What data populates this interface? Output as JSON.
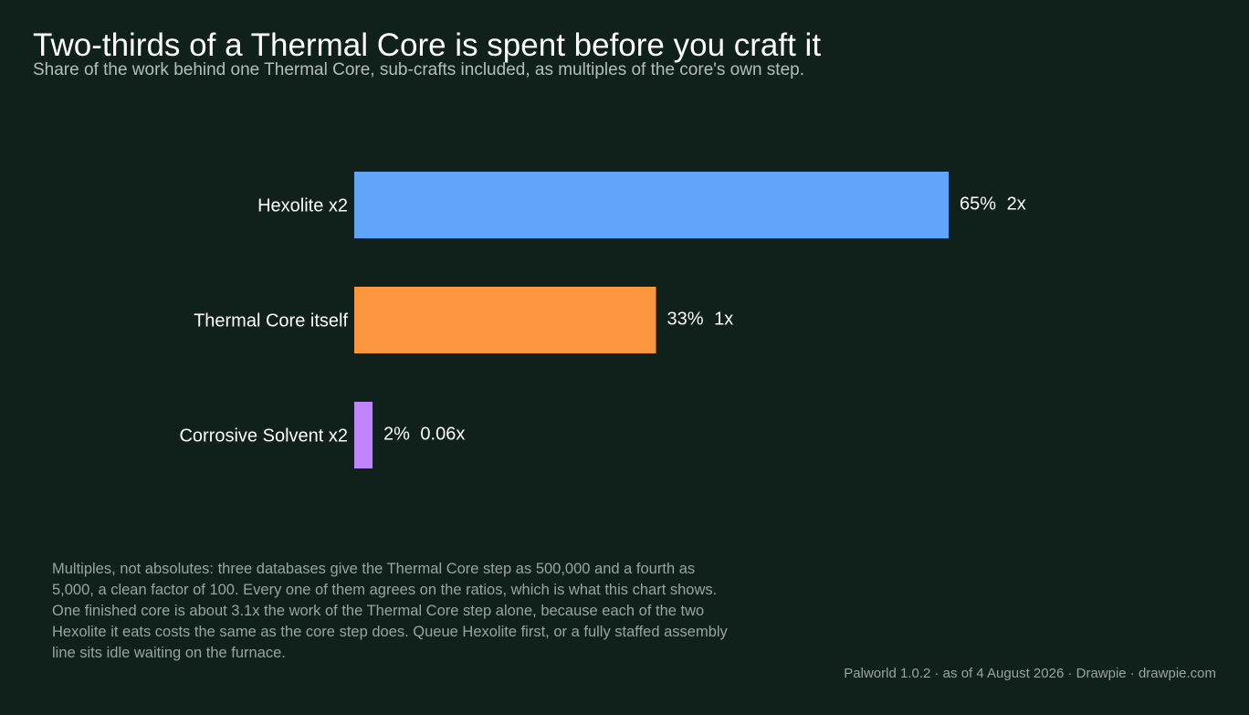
{
  "header": {
    "title": "Two-thirds of a Thermal Core is spent before you craft it",
    "subtitle": "Share of the work behind one Thermal Core, sub-crafts included, as multiples of the core's own step."
  },
  "chart_data": {
    "type": "bar",
    "orientation": "horizontal",
    "categories": [
      "Hexolite x2",
      "Thermal Core itself",
      "Corrosive Solvent x2"
    ],
    "values": [
      65,
      33,
      2
    ],
    "value_unit": "%",
    "value_labels": [
      "65%",
      "33%",
      "2%"
    ],
    "multiple_labels": [
      "2x",
      "1x",
      "0.06x"
    ],
    "colors": [
      "#60a5fa",
      "#fb963f",
      "#c084fc"
    ],
    "xlim": [
      0,
      65
    ],
    "grid": false,
    "legend": "none"
  },
  "notes": {
    "paragraph_1": "Multiples, not absolutes: three databases give the Thermal Core step as 500,000 and a fourth as 5,000, a clean factor of 100. Every one of them agrees on the ratios, which is what this chart shows.",
    "paragraph_2": "One finished core is about 3.1x the work of the Thermal Core step alone, because each of the two Hexolite it eats costs the same as the core step does. Queue Hexolite first, or a fully staffed assembly line sits idle waiting on the furnace."
  },
  "footer": {
    "source": "Palworld 1.0.2 · as of 4 August 2026  ·  Drawpie · drawpie.com"
  },
  "colors": {
    "background": "#10201b",
    "text": "#ffffff",
    "muted": "#9aa4a0"
  }
}
